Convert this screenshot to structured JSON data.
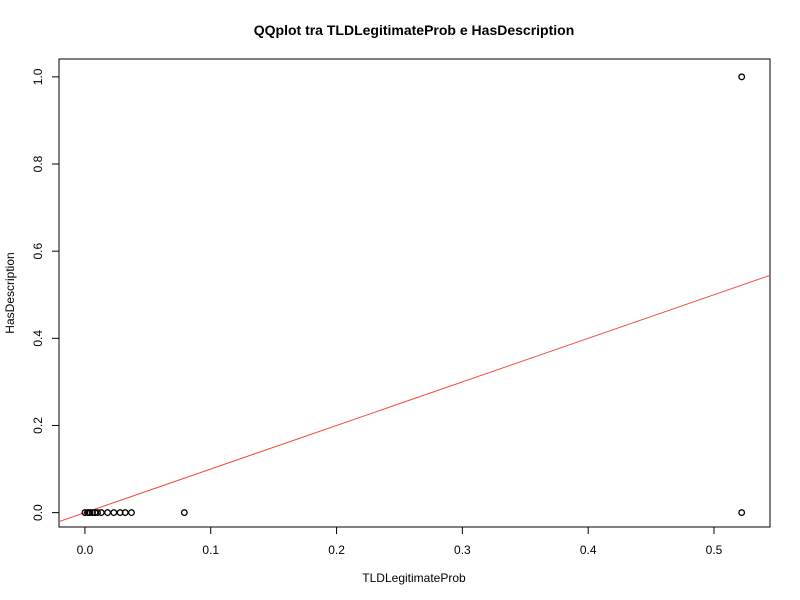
{
  "chart_data": {
    "type": "scatter",
    "title": "QQplot tra TLDLegitimateProb e HasDescription",
    "xlabel": "TLDLegitimateProb",
    "ylabel": "HasDescription",
    "xlim": [
      -0.0206,
      0.5445
    ],
    "ylim": [
      -0.033,
      1.041
    ],
    "x_ticks": [
      "0.0",
      "0.1",
      "0.2",
      "0.3",
      "0.4",
      "0.5"
    ],
    "y_ticks": [
      "0.0",
      "0.2",
      "0.4",
      "0.6",
      "0.8",
      "1.0"
    ],
    "grid": false,
    "points": {
      "x": [
        0.0,
        0.002,
        0.003,
        0.004,
        0.006,
        0.008,
        0.01,
        0.013,
        0.018,
        0.023,
        0.028,
        0.032,
        0.037,
        0.079,
        0.522,
        0.522
      ],
      "y": [
        0,
        0,
        0,
        0,
        0,
        0,
        0,
        0,
        0,
        0,
        0,
        0,
        0,
        0,
        0,
        1
      ]
    },
    "reference_line": {
      "intercept": 0.0,
      "slope": 1.0,
      "color": "#ef4b3d"
    },
    "point_color": "#000000"
  }
}
